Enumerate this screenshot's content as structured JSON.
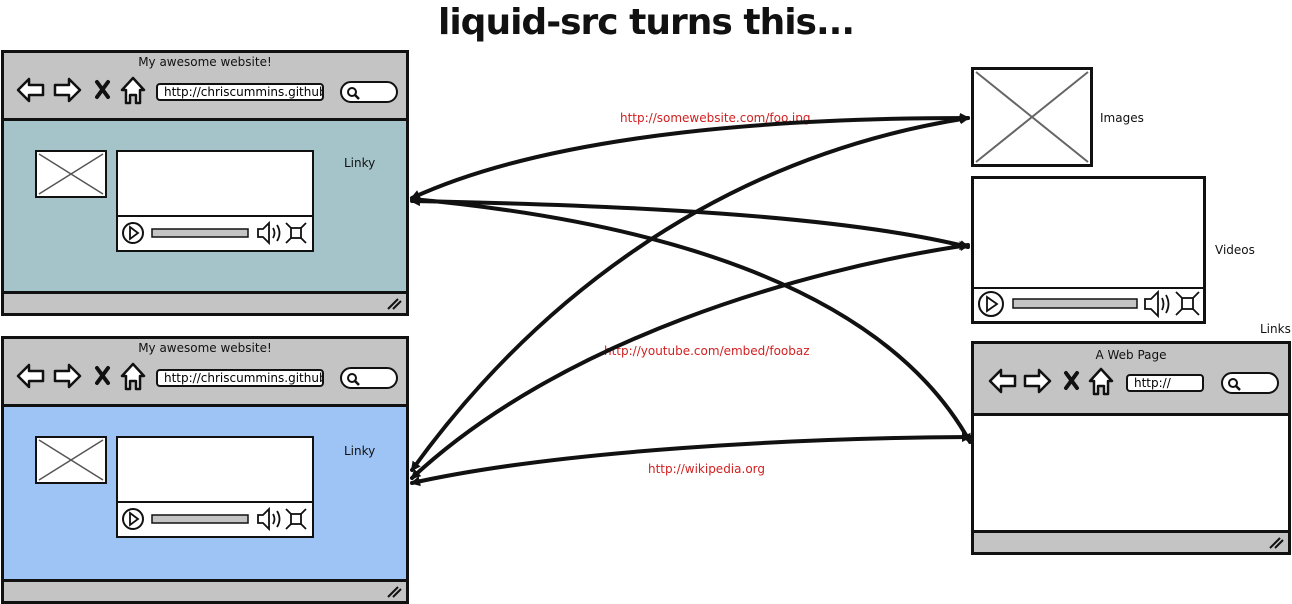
{
  "title": "liquid-src turns this...",
  "browser_window_1": {
    "title": "My awesome website!",
    "url": "http://chriscummins.github.i",
    "link_label": "Linky",
    "content_color": "#a5c4c9"
  },
  "browser_window_2": {
    "title": "My awesome website!",
    "url": "http://chriscummins.github.i",
    "link_label": "Linky",
    "content_color": "#9ec4f5"
  },
  "targets": {
    "images_label": "Images",
    "videos_label": "Videos",
    "links_label": "Links",
    "webpage_title": "A Web Page",
    "webpage_url": "http://"
  },
  "arrow_labels": {
    "image_url": "http://somewebsite.com/foo.jpg",
    "video_url": "http://youtube.com/embed/foobaz",
    "link_url": "http://wikipedia.org"
  },
  "colors": {
    "chrome": "#c4c4c4",
    "url_text": "#d21f1f"
  }
}
